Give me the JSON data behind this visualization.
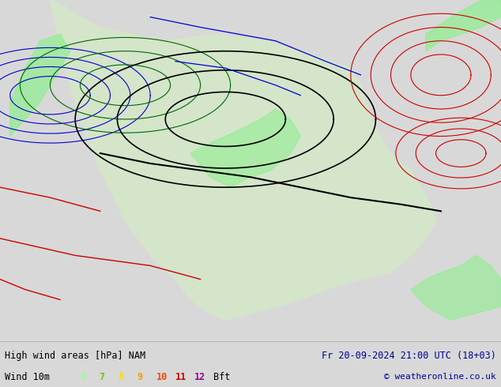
{
  "title_left": "High wind areas [hPa] NAM",
  "title_right": "Fr 20-09-2024 21:00 UTC (18+03)",
  "subtitle_left": "Wind 10m",
  "subtitle_right": "© weatheronline.co.uk",
  "bft_labels": [
    "6",
    "7",
    "8",
    "9",
    "10",
    "11",
    "12",
    "Bft"
  ],
  "bft_colors": [
    "#99ff99",
    "#66cc00",
    "#ffdd00",
    "#ff9900",
    "#ff4400",
    "#cc0000",
    "#990099",
    "#000000"
  ],
  "bg_color": "#d8d8d8",
  "map_bg": "#c8d8e8",
  "footer_bg": "#e0e0e0",
  "figsize": [
    6.34,
    4.9
  ],
  "dpi": 100,
  "land_color": "#d4e8c8",
  "wind_color": "#90ee90",
  "isobar_blue": "#0000cc",
  "isobar_red": "#cc0000",
  "isobar_black": "#000000",
  "isobar_green": "#006600"
}
